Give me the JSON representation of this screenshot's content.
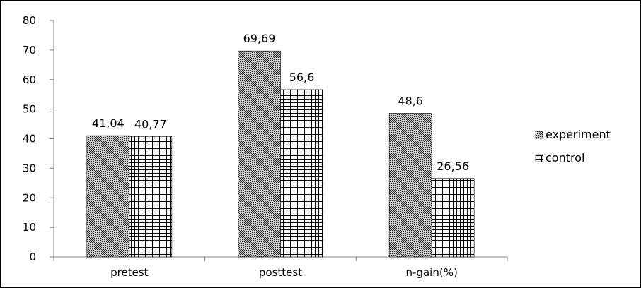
{
  "chart_data": {
    "type": "bar",
    "categories": [
      "pretest",
      "posttest",
      "n-gain(%)"
    ],
    "series": [
      {
        "name": "experiment",
        "values": [
          41.04,
          69.69,
          48.6
        ],
        "labels": [
          "41,04",
          "69,69",
          "48,6"
        ],
        "pattern": "diagonal-hatch"
      },
      {
        "name": "control",
        "values": [
          40.77,
          56.6,
          26.56
        ],
        "labels": [
          "40,77",
          "56,6",
          "26,56"
        ],
        "pattern": "grid-hatch"
      }
    ],
    "ylim": [
      0,
      80
    ],
    "yticks": [
      0,
      10,
      20,
      30,
      40,
      50,
      60,
      70,
      80
    ],
    "ytick_labels": [
      "0",
      "10",
      "20",
      "30",
      "40",
      "50",
      "60",
      "70",
      "80"
    ],
    "grid": false,
    "legend": "right"
  }
}
